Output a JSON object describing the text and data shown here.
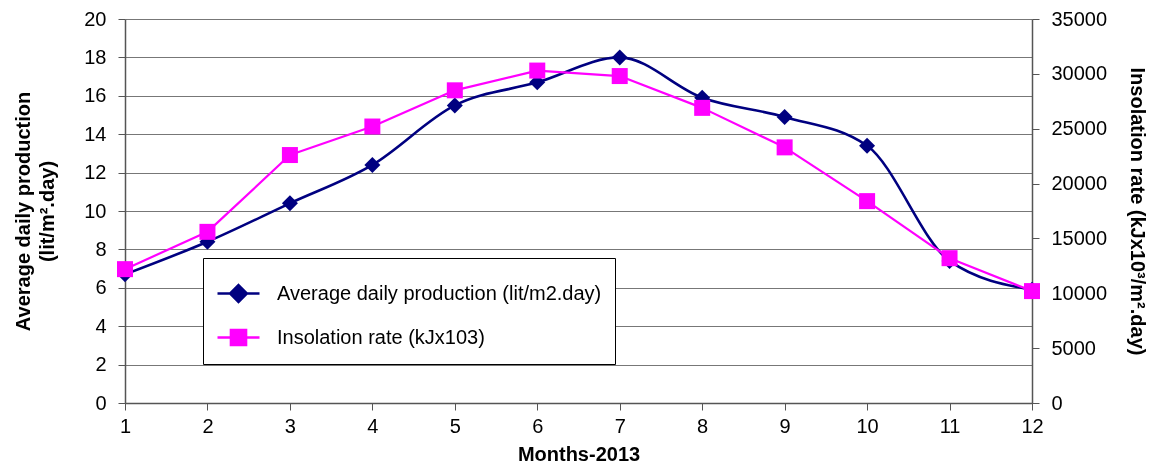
{
  "chart_data": {
    "type": "line",
    "xlabel": "Months-2013",
    "ylabel": "Average daily production\n(lit/m².day)",
    "y2label": "Insolation rate (kJx10³/m².day)",
    "x": [
      1,
      2,
      3,
      4,
      5,
      6,
      7,
      8,
      9,
      10,
      11,
      12
    ],
    "xlim": [
      1,
      12
    ],
    "xticks": [
      1,
      2,
      3,
      4,
      5,
      6,
      7,
      8,
      9,
      10,
      11,
      12
    ],
    "ylim": [
      0,
      20
    ],
    "yticks": [
      0,
      2,
      4,
      6,
      8,
      10,
      12,
      14,
      16,
      18,
      20
    ],
    "y2lim": [
      0,
      35000
    ],
    "y2ticks": [
      0,
      5000,
      10000,
      15000,
      20000,
      25000,
      30000,
      35000
    ],
    "grid": "y",
    "legend": "bottom left",
    "series": [
      {
        "name": "Average daily production (lit/m2.day)",
        "color": "#000080",
        "marker": "diamond",
        "values": [
          6.7,
          8.4,
          10.4,
          12.4,
          15.5,
          16.7,
          18.0,
          15.9,
          14.9,
          13.4,
          7.4,
          5.9
        ]
      },
      {
        "name": "Insolation rate (kJx103)",
        "color": "#ff00ff",
        "marker": "square",
        "axis": "y2",
        "values": [
          12200,
          15600,
          22600,
          25200,
          28500,
          30300,
          29800,
          26900,
          23300,
          18400,
          13200,
          10200
        ]
      }
    ]
  }
}
